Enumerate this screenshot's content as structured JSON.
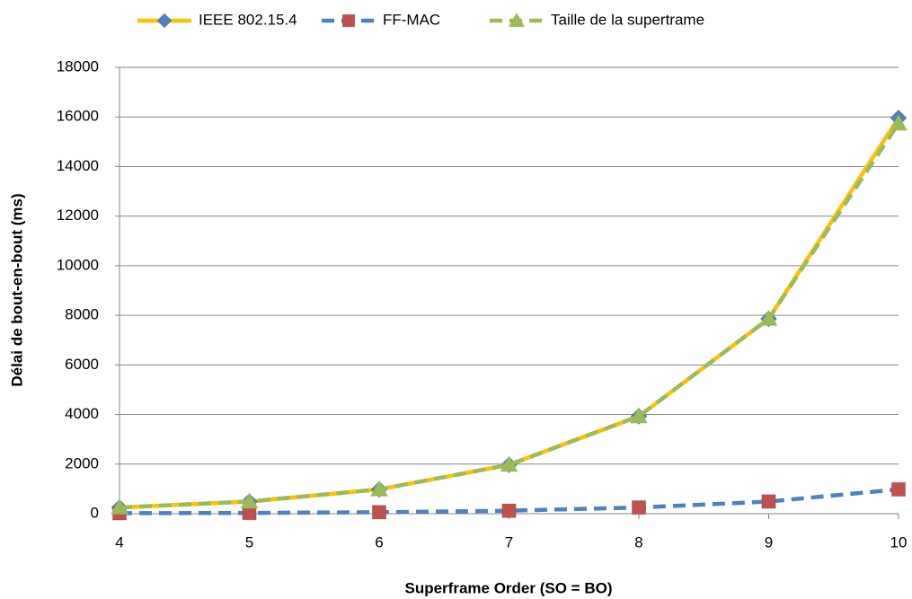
{
  "chart_data": {
    "type": "line",
    "xlabel": "Superframe Order (SO = BO)",
    "ylabel": "Délai de bout-en-bout (ms)",
    "x": [
      4,
      5,
      6,
      7,
      8,
      9,
      10
    ],
    "xlim": [
      4,
      10
    ],
    "xticks": [
      4,
      5,
      6,
      7,
      8,
      9,
      10
    ],
    "ylim": [
      0,
      18000
    ],
    "yticks": [
      0,
      2000,
      4000,
      6000,
      8000,
      10000,
      12000,
      14000,
      16000,
      18000
    ],
    "grid": true,
    "legend": "top",
    "series": [
      {
        "name": "IEEE 802.15.4",
        "color": "#ffc000",
        "marker": "diamond",
        "marker_color": "#4f81bd",
        "dashed": false,
        "values": [
          250,
          490,
          980,
          1970,
          3930,
          7860,
          15960
        ]
      },
      {
        "name": "FF-MAC",
        "color": "#4f81bd",
        "marker": "square",
        "marker_color": "#c0504d",
        "dashed": true,
        "values": [
          20,
          30,
          60,
          120,
          250,
          490,
          980
        ]
      },
      {
        "name": "Taille de la supertrame",
        "color": "#9bbb59",
        "marker": "triangle",
        "marker_color": "#9bbb59",
        "dashed": true,
        "values": [
          250,
          490,
          980,
          1970,
          3930,
          7860,
          15730
        ]
      }
    ]
  }
}
